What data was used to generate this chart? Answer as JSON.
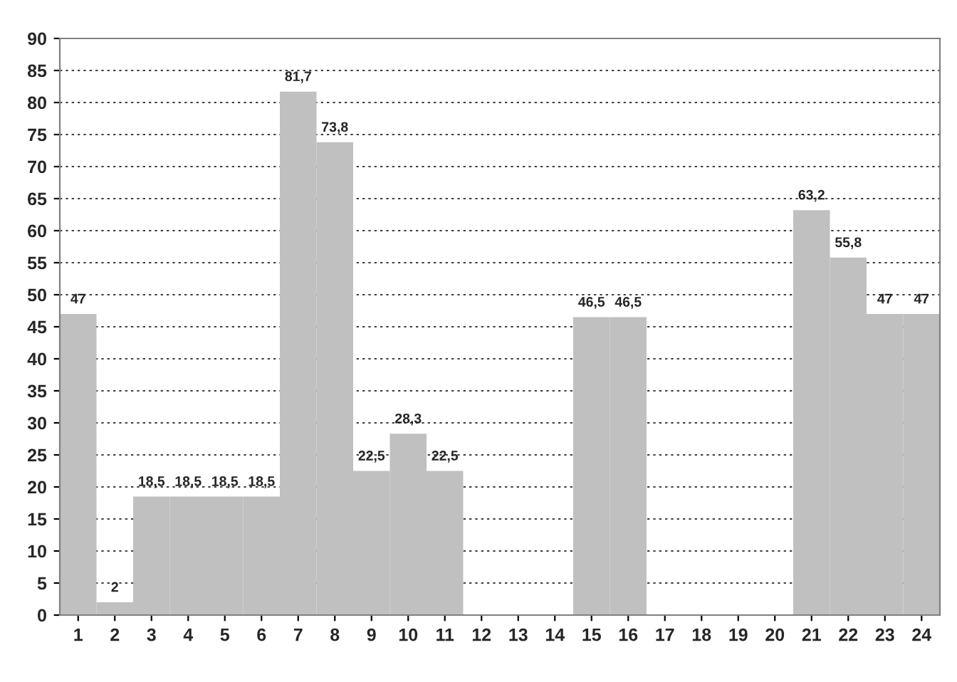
{
  "chart_data": {
    "type": "bar",
    "categories": [
      "1",
      "2",
      "3",
      "4",
      "5",
      "6",
      "7",
      "8",
      "9",
      "10",
      "11",
      "12",
      "13",
      "14",
      "15",
      "16",
      "17",
      "18",
      "19",
      "20",
      "21",
      "22",
      "23",
      "24"
    ],
    "values": [
      47,
      2,
      18.5,
      18.5,
      18.5,
      18.5,
      81.7,
      73.8,
      22.5,
      28.3,
      22.5,
      null,
      null,
      null,
      46.5,
      46.5,
      null,
      null,
      null,
      null,
      63.2,
      55.8,
      47,
      47
    ],
    "value_labels": [
      "47",
      "2",
      "18,5",
      "18,5",
      "18,5",
      "18,5",
      "81,7",
      "73,8",
      "22,5",
      "28,3",
      "22,5",
      null,
      null,
      null,
      "46,5",
      "46,5",
      null,
      null,
      null,
      null,
      "63,2",
      "55,8",
      "47",
      "47"
    ],
    "color": "#c0c0c0",
    "ylim": [
      0,
      90
    ],
    "yticks": [
      0,
      5,
      10,
      15,
      20,
      25,
      30,
      35,
      40,
      45,
      50,
      55,
      60,
      65,
      70,
      75,
      80,
      85,
      90
    ],
    "grid": "y",
    "legend": false
  }
}
